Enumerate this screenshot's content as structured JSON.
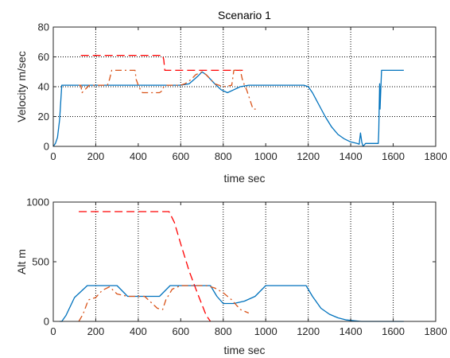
{
  "chart_data": [
    {
      "type": "line",
      "title": "Scenario 1",
      "xlabel": "time sec",
      "ylabel": "Velocity m/sec",
      "xlim": [
        0,
        1800
      ],
      "ylim": [
        0,
        80
      ],
      "xticks": [
        0,
        200,
        400,
        600,
        800,
        1000,
        1200,
        1400,
        1600,
        1800
      ],
      "yticks": [
        0,
        20,
        40,
        60,
        80
      ],
      "colors": {
        "blue": "#0072BD",
        "red": "#FF0000",
        "orange": "#D95319",
        "grid": "#000000"
      },
      "vgrid": [
        200,
        600,
        800,
        1200,
        1400
      ],
      "hgrid": [
        20,
        40,
        60
      ],
      "series": [
        {
          "style": "solid",
          "color": "#0072BD",
          "x": [
            0,
            10,
            20,
            30,
            35,
            40,
            100,
            200,
            300,
            400,
            500,
            600,
            640,
            680,
            700,
            720,
            760,
            790,
            820,
            850,
            880,
            920,
            1000,
            1100,
            1150,
            1180,
            1200,
            1220,
            1250,
            1280,
            1310,
            1340,
            1370,
            1400,
            1430,
            1440,
            1446,
            1452,
            1458,
            1470,
            1490,
            1510,
            1530,
            1532,
            1534,
            1536,
            1538,
            1545,
            1600,
            1650
          ],
          "y": [
            0,
            2,
            6,
            18,
            30,
            41,
            41,
            41,
            41,
            41,
            41,
            41,
            42,
            47,
            50,
            48,
            42,
            38,
            36,
            38,
            40,
            41,
            41,
            41,
            41,
            41,
            40,
            36,
            28,
            20,
            13,
            8,
            5,
            3,
            2,
            1.5,
            9,
            3,
            0,
            2,
            2,
            2,
            2,
            10,
            25,
            42,
            25,
            51,
            51,
            51
          ]
        },
        {
          "style": "dashed",
          "color": "#FF0000",
          "x": [
            130,
            340,
            515,
            520,
            525,
            600,
            700,
            800,
            900
          ],
          "y": [
            61,
            61,
            61,
            58,
            51,
            51,
            51,
            51,
            51
          ]
        },
        {
          "style": "dashdot",
          "color": "#D95319",
          "x": [
            120,
            130,
            135,
            170,
            210,
            230,
            255,
            265,
            275,
            385,
            390,
            400,
            410,
            420,
            430,
            500,
            510,
            520,
            530,
            600,
            620,
            650,
            670,
            700,
            720,
            740,
            760,
            800,
            840,
            850,
            880,
            890,
            900,
            910,
            940,
            960
          ],
          "y": [
            41,
            41,
            36,
            41,
            41,
            41,
            41,
            45,
            51,
            51,
            45,
            41,
            38,
            36,
            36,
            36,
            37,
            40,
            41,
            41,
            42,
            45,
            48,
            50,
            48,
            45,
            42,
            40,
            41,
            51,
            51,
            45,
            41,
            38,
            25,
            25
          ]
        }
      ]
    },
    {
      "type": "line",
      "title": "",
      "xlabel": "time sec",
      "ylabel": "Alt m",
      "xlim": [
        0,
        1800
      ],
      "ylim": [
        0,
        1000
      ],
      "xticks": [
        0,
        200,
        400,
        600,
        800,
        1000,
        1200,
        1400,
        1600,
        1800
      ],
      "yticks": [
        0,
        500,
        1000
      ],
      "colors": {
        "blue": "#0072BD",
        "red": "#FF0000",
        "orange": "#D95319",
        "grid": "#000000"
      },
      "vgrid": [
        200,
        400,
        800,
        1000,
        1200,
        1400,
        1600
      ],
      "hgrid": [],
      "series": [
        {
          "style": "solid",
          "color": "#0072BD",
          "x": [
            30,
            40,
            60,
            100,
            160,
            200,
            250,
            300,
            350,
            400,
            450,
            500,
            550,
            600,
            650,
            700,
            740,
            770,
            800,
            850,
            900,
            950,
            1000,
            1050,
            1100,
            1150,
            1190,
            1220,
            1260,
            1300,
            1340,
            1380,
            1420,
            1450,
            1500,
            1550,
            1600,
            1650
          ],
          "y": [
            0,
            0,
            50,
            200,
            300,
            300,
            300,
            300,
            210,
            210,
            210,
            210,
            300,
            300,
            300,
            300,
            300,
            210,
            150,
            150,
            170,
            210,
            300,
            300,
            300,
            300,
            300,
            210,
            110,
            60,
            30,
            12,
            5,
            0,
            0,
            0,
            0,
            0
          ]
        },
        {
          "style": "dashed",
          "color": "#FF0000",
          "x": [
            120,
            200,
            300,
            400,
            500,
            545,
            570,
            600,
            640,
            680,
            720,
            740
          ],
          "y": [
            920,
            920,
            920,
            920,
            920,
            920,
            830,
            650,
            420,
            230,
            50,
            0
          ]
        },
        {
          "style": "dashdot",
          "color": "#D95319",
          "x": [
            120,
            140,
            165,
            200,
            230,
            265,
            300,
            350,
            400,
            430,
            460,
            490,
            515,
            530,
            560,
            600,
            700,
            720,
            760,
            800,
            840,
            880,
            920
          ],
          "y": [
            0,
            60,
            180,
            200,
            260,
            290,
            230,
            210,
            210,
            210,
            160,
            110,
            100,
            180,
            270,
            300,
            300,
            300,
            280,
            240,
            180,
            100,
            70
          ]
        }
      ]
    }
  ]
}
